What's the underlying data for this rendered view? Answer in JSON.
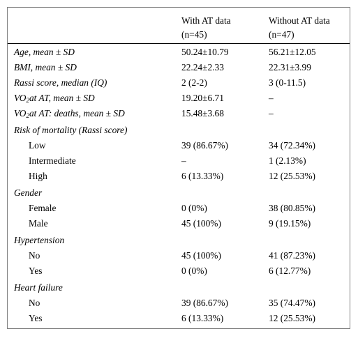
{
  "header": {
    "col2_line1": "With AT data",
    "col2_line2": "(n=45)",
    "col3_line1": "Without AT data",
    "col3_line2": "(n=47)"
  },
  "rows": [
    {
      "label": "Age, mean ± SD",
      "with": "50.24±10.79",
      "without": "56.21±12.05"
    },
    {
      "label": "BMI, mean ± SD",
      "with": "22.24±2.33",
      "without": "22.31±3.99"
    },
    {
      "label": "Rassi score, median (IQ)",
      "with": "2 (2-2)",
      "without": "3 (0-11.5)"
    },
    {
      "label_pre": "VO",
      "label_sub": "2",
      "label_post": "at AT, mean ± SD",
      "with": "19.20±6.71",
      "without": "–"
    },
    {
      "label_pre": "VO",
      "label_sub": "2",
      "label_post": "at AT: deaths, mean ± SD",
      "with": "15.48±3.68",
      "without": "–"
    },
    {
      "label": "Risk of mortality (Rassi score)"
    },
    {
      "label": "Low",
      "with": "39 (86.67%)",
      "without": "34 (72.34%)"
    },
    {
      "label": "Intermediate",
      "with": "–",
      "without": "1 (2.13%)"
    },
    {
      "label": "High",
      "with": "6 (13.33%)",
      "without": "12 (25.53%)"
    },
    {
      "label": "Gender"
    },
    {
      "label": "Female",
      "with": "0 (0%)",
      "without": "38 (80.85%)"
    },
    {
      "label": "Male",
      "with": "45 (100%)",
      "without": "9 (19.15%)"
    },
    {
      "label": "Hypertension"
    },
    {
      "label": "No",
      "with": "45 (100%)",
      "without": "41 (87.23%)"
    },
    {
      "label": "Yes",
      "with": "0 (0%)",
      "without": "6 (12.77%)"
    },
    {
      "label": "Heart failure"
    },
    {
      "label": "No",
      "with": "39 (86.67%)",
      "without": "35 (74.47%)"
    },
    {
      "label": "Yes",
      "with": "6 (13.33%)",
      "without": "12 (25.53%)"
    }
  ]
}
